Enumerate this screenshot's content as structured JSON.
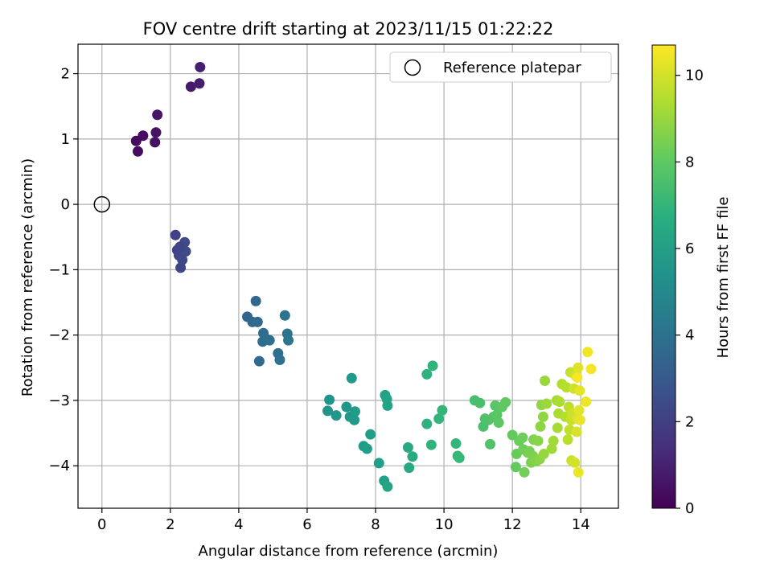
{
  "chart_data": {
    "type": "scatter",
    "title": "FOV centre drift starting at 2023/11/15 01:22:22",
    "xlabel": "Angular distance from reference (arcmin)",
    "ylabel": "Rotation from reference (arcmin)",
    "xlim": [
      -0.7,
      15.1
    ],
    "ylim": [
      -4.65,
      2.45
    ],
    "xticks": [
      0,
      2,
      4,
      6,
      8,
      10,
      12,
      14
    ],
    "yticks": [
      -4,
      -3,
      -2,
      -1,
      0,
      1,
      2
    ],
    "grid": true,
    "legend": {
      "placement": "top-right",
      "entries": [
        "Reference platepar"
      ]
    },
    "reference_point": {
      "x": 0,
      "y": 0,
      "label": "Reference platepar"
    },
    "colorbar": {
      "label": "Hours from first FF file",
      "colormap": "viridis",
      "range": [
        0,
        10.7
      ],
      "ticks": [
        0,
        2,
        4,
        6,
        8,
        10
      ]
    },
    "points": [
      {
        "x": 1.0,
        "y": 0.97,
        "c": 0.3
      },
      {
        "x": 1.05,
        "y": 0.81,
        "c": 0.35
      },
      {
        "x": 1.2,
        "y": 1.05,
        "c": 0.4
      },
      {
        "x": 1.55,
        "y": 0.95,
        "c": 0.5
      },
      {
        "x": 1.58,
        "y": 1.1,
        "c": 0.55
      },
      {
        "x": 1.62,
        "y": 1.37,
        "c": 0.6
      },
      {
        "x": 2.6,
        "y": 1.8,
        "c": 0.8
      },
      {
        "x": 2.85,
        "y": 1.85,
        "c": 0.85
      },
      {
        "x": 2.87,
        "y": 2.1,
        "c": 0.9
      },
      {
        "x": 2.15,
        "y": -0.47,
        "c": 2.1
      },
      {
        "x": 2.2,
        "y": -0.7,
        "c": 2.15
      },
      {
        "x": 2.25,
        "y": -0.78,
        "c": 2.2
      },
      {
        "x": 2.3,
        "y": -0.97,
        "c": 2.25
      },
      {
        "x": 2.35,
        "y": -0.85,
        "c": 2.3
      },
      {
        "x": 2.38,
        "y": -0.7,
        "c": 2.35
      },
      {
        "x": 2.42,
        "y": -0.58,
        "c": 2.4
      },
      {
        "x": 2.45,
        "y": -0.72,
        "c": 2.45
      },
      {
        "x": 2.28,
        "y": -0.65,
        "c": 2.2
      },
      {
        "x": 4.25,
        "y": -1.72,
        "c": 3.5
      },
      {
        "x": 4.4,
        "y": -1.8,
        "c": 3.55
      },
      {
        "x": 4.5,
        "y": -1.48,
        "c": 3.6
      },
      {
        "x": 4.55,
        "y": -1.8,
        "c": 3.65
      },
      {
        "x": 4.6,
        "y": -2.4,
        "c": 3.7
      },
      {
        "x": 4.7,
        "y": -2.1,
        "c": 3.75
      },
      {
        "x": 4.72,
        "y": -1.97,
        "c": 3.8
      },
      {
        "x": 4.78,
        "y": -2.05,
        "c": 3.85
      },
      {
        "x": 4.9,
        "y": -2.08,
        "c": 3.9
      },
      {
        "x": 5.15,
        "y": -2.28,
        "c": 3.95
      },
      {
        "x": 5.2,
        "y": -2.38,
        "c": 4.0
      },
      {
        "x": 5.35,
        "y": -1.7,
        "c": 4.05
      },
      {
        "x": 5.42,
        "y": -1.98,
        "c": 4.1
      },
      {
        "x": 5.45,
        "y": -2.08,
        "c": 4.15
      },
      {
        "x": 6.6,
        "y": -3.16,
        "c": 5.5
      },
      {
        "x": 6.65,
        "y": -2.99,
        "c": 5.55
      },
      {
        "x": 6.85,
        "y": -3.23,
        "c": 5.6
      },
      {
        "x": 7.15,
        "y": -3.1,
        "c": 5.65
      },
      {
        "x": 7.25,
        "y": -3.25,
        "c": 5.7
      },
      {
        "x": 7.3,
        "y": -2.66,
        "c": 5.75
      },
      {
        "x": 7.38,
        "y": -3.3,
        "c": 5.8
      },
      {
        "x": 7.4,
        "y": -3.17,
        "c": 5.85
      },
      {
        "x": 7.65,
        "y": -3.7,
        "c": 5.9
      },
      {
        "x": 7.75,
        "y": -3.74,
        "c": 5.95
      },
      {
        "x": 7.85,
        "y": -3.52,
        "c": 6.0
      },
      {
        "x": 8.1,
        "y": -3.96,
        "c": 6.05
      },
      {
        "x": 8.25,
        "y": -4.23,
        "c": 6.1
      },
      {
        "x": 8.28,
        "y": -2.92,
        "c": 6.15
      },
      {
        "x": 8.33,
        "y": -2.98,
        "c": 6.2
      },
      {
        "x": 8.35,
        "y": -3.08,
        "c": 6.25
      },
      {
        "x": 8.35,
        "y": -4.32,
        "c": 6.3
      },
      {
        "x": 8.95,
        "y": -3.72,
        "c": 6.4
      },
      {
        "x": 8.98,
        "y": -4.03,
        "c": 6.45
      },
      {
        "x": 9.08,
        "y": -3.86,
        "c": 6.5
      },
      {
        "x": 9.5,
        "y": -3.36,
        "c": 6.8
      },
      {
        "x": 9.5,
        "y": -2.6,
        "c": 6.85
      },
      {
        "x": 9.63,
        "y": -3.68,
        "c": 6.9
      },
      {
        "x": 9.67,
        "y": -2.47,
        "c": 6.95
      },
      {
        "x": 9.85,
        "y": -3.28,
        "c": 7.0
      },
      {
        "x": 9.95,
        "y": -3.15,
        "c": 7.05
      },
      {
        "x": 10.35,
        "y": -3.66,
        "c": 7.1
      },
      {
        "x": 10.4,
        "y": -3.85,
        "c": 7.15
      },
      {
        "x": 10.45,
        "y": -3.88,
        "c": 7.2
      },
      {
        "x": 10.9,
        "y": -3.0,
        "c": 7.5
      },
      {
        "x": 11.05,
        "y": -3.04,
        "c": 7.55
      },
      {
        "x": 11.15,
        "y": -3.4,
        "c": 7.6
      },
      {
        "x": 11.2,
        "y": -3.28,
        "c": 7.65
      },
      {
        "x": 11.3,
        "y": -3.3,
        "c": 7.7
      },
      {
        "x": 11.35,
        "y": -3.67,
        "c": 7.75
      },
      {
        "x": 11.45,
        "y": -3.25,
        "c": 7.8
      },
      {
        "x": 11.5,
        "y": -3.08,
        "c": 7.85
      },
      {
        "x": 11.55,
        "y": -3.22,
        "c": 7.9
      },
      {
        "x": 11.6,
        "y": -3.34,
        "c": 7.95
      },
      {
        "x": 11.7,
        "y": -3.1,
        "c": 8.0
      },
      {
        "x": 11.8,
        "y": -3.03,
        "c": 8.05
      },
      {
        "x": 12.0,
        "y": -3.53,
        "c": 8.1
      },
      {
        "x": 12.1,
        "y": -4.02,
        "c": 8.15
      },
      {
        "x": 12.12,
        "y": -3.82,
        "c": 8.2
      },
      {
        "x": 12.2,
        "y": -3.62,
        "c": 8.25
      },
      {
        "x": 12.3,
        "y": -3.57,
        "c": 8.3
      },
      {
        "x": 12.32,
        "y": -3.75,
        "c": 8.35
      },
      {
        "x": 12.35,
        "y": -4.1,
        "c": 8.4
      },
      {
        "x": 12.45,
        "y": -3.8,
        "c": 8.45
      },
      {
        "x": 12.5,
        "y": -3.78,
        "c": 8.5
      },
      {
        "x": 12.55,
        "y": -3.95,
        "c": 8.55
      },
      {
        "x": 12.6,
        "y": -3.85,
        "c": 8.6
      },
      {
        "x": 12.62,
        "y": -3.6,
        "c": 8.65
      },
      {
        "x": 12.7,
        "y": -3.93,
        "c": 8.7
      },
      {
        "x": 12.75,
        "y": -3.62,
        "c": 8.75
      },
      {
        "x": 12.8,
        "y": -3.9,
        "c": 8.8
      },
      {
        "x": 12.82,
        "y": -3.4,
        "c": 8.85
      },
      {
        "x": 12.85,
        "y": -3.07,
        "c": 8.9
      },
      {
        "x": 12.9,
        "y": -3.25,
        "c": 8.95
      },
      {
        "x": 12.92,
        "y": -3.82,
        "c": 9.0
      },
      {
        "x": 12.95,
        "y": -2.7,
        "c": 9.05
      },
      {
        "x": 13.0,
        "y": -3.05,
        "c": 9.1
      },
      {
        "x": 13.15,
        "y": -3.74,
        "c": 9.15
      },
      {
        "x": 13.2,
        "y": -3.62,
        "c": 9.2
      },
      {
        "x": 13.3,
        "y": -3.0,
        "c": 9.25
      },
      {
        "x": 13.32,
        "y": -3.42,
        "c": 9.3
      },
      {
        "x": 13.35,
        "y": -3.2,
        "c": 9.35
      },
      {
        "x": 13.38,
        "y": -3.02,
        "c": 9.4
      },
      {
        "x": 13.45,
        "y": -2.75,
        "c": 9.45
      },
      {
        "x": 13.55,
        "y": -3.25,
        "c": 9.5
      },
      {
        "x": 13.58,
        "y": -2.8,
        "c": 9.55
      },
      {
        "x": 13.62,
        "y": -3.6,
        "c": 9.6
      },
      {
        "x": 13.65,
        "y": -3.1,
        "c": 9.65
      },
      {
        "x": 13.67,
        "y": -3.45,
        "c": 9.7
      },
      {
        "x": 13.7,
        "y": -2.57,
        "c": 9.75
      },
      {
        "x": 13.72,
        "y": -3.3,
        "c": 9.8
      },
      {
        "x": 13.73,
        "y": -3.92,
        "c": 9.85
      },
      {
        "x": 13.75,
        "y": -3.2,
        "c": 9.9
      },
      {
        "x": 13.8,
        "y": -2.82,
        "c": 9.95
      },
      {
        "x": 13.82,
        "y": -3.95,
        "c": 10.0
      },
      {
        "x": 13.85,
        "y": -2.62,
        "c": 10.05
      },
      {
        "x": 13.88,
        "y": -3.48,
        "c": 10.1
      },
      {
        "x": 13.9,
        "y": -3.28,
        "c": 10.15
      },
      {
        "x": 13.92,
        "y": -2.5,
        "c": 10.2
      },
      {
        "x": 13.95,
        "y": -3.15,
        "c": 10.25
      },
      {
        "x": 13.97,
        "y": -2.85,
        "c": 10.3
      },
      {
        "x": 13.98,
        "y": -3.3,
        "c": 10.35
      },
      {
        "x": 13.93,
        "y": -4.1,
        "c": 10.4
      },
      {
        "x": 14.15,
        "y": -3.02,
        "c": 10.45
      },
      {
        "x": 14.2,
        "y": -2.26,
        "c": 10.5
      },
      {
        "x": 14.3,
        "y": -2.52,
        "c": 10.55
      },
      {
        "x": 13.9,
        "y": -2.65,
        "c": 10.6
      }
    ]
  }
}
